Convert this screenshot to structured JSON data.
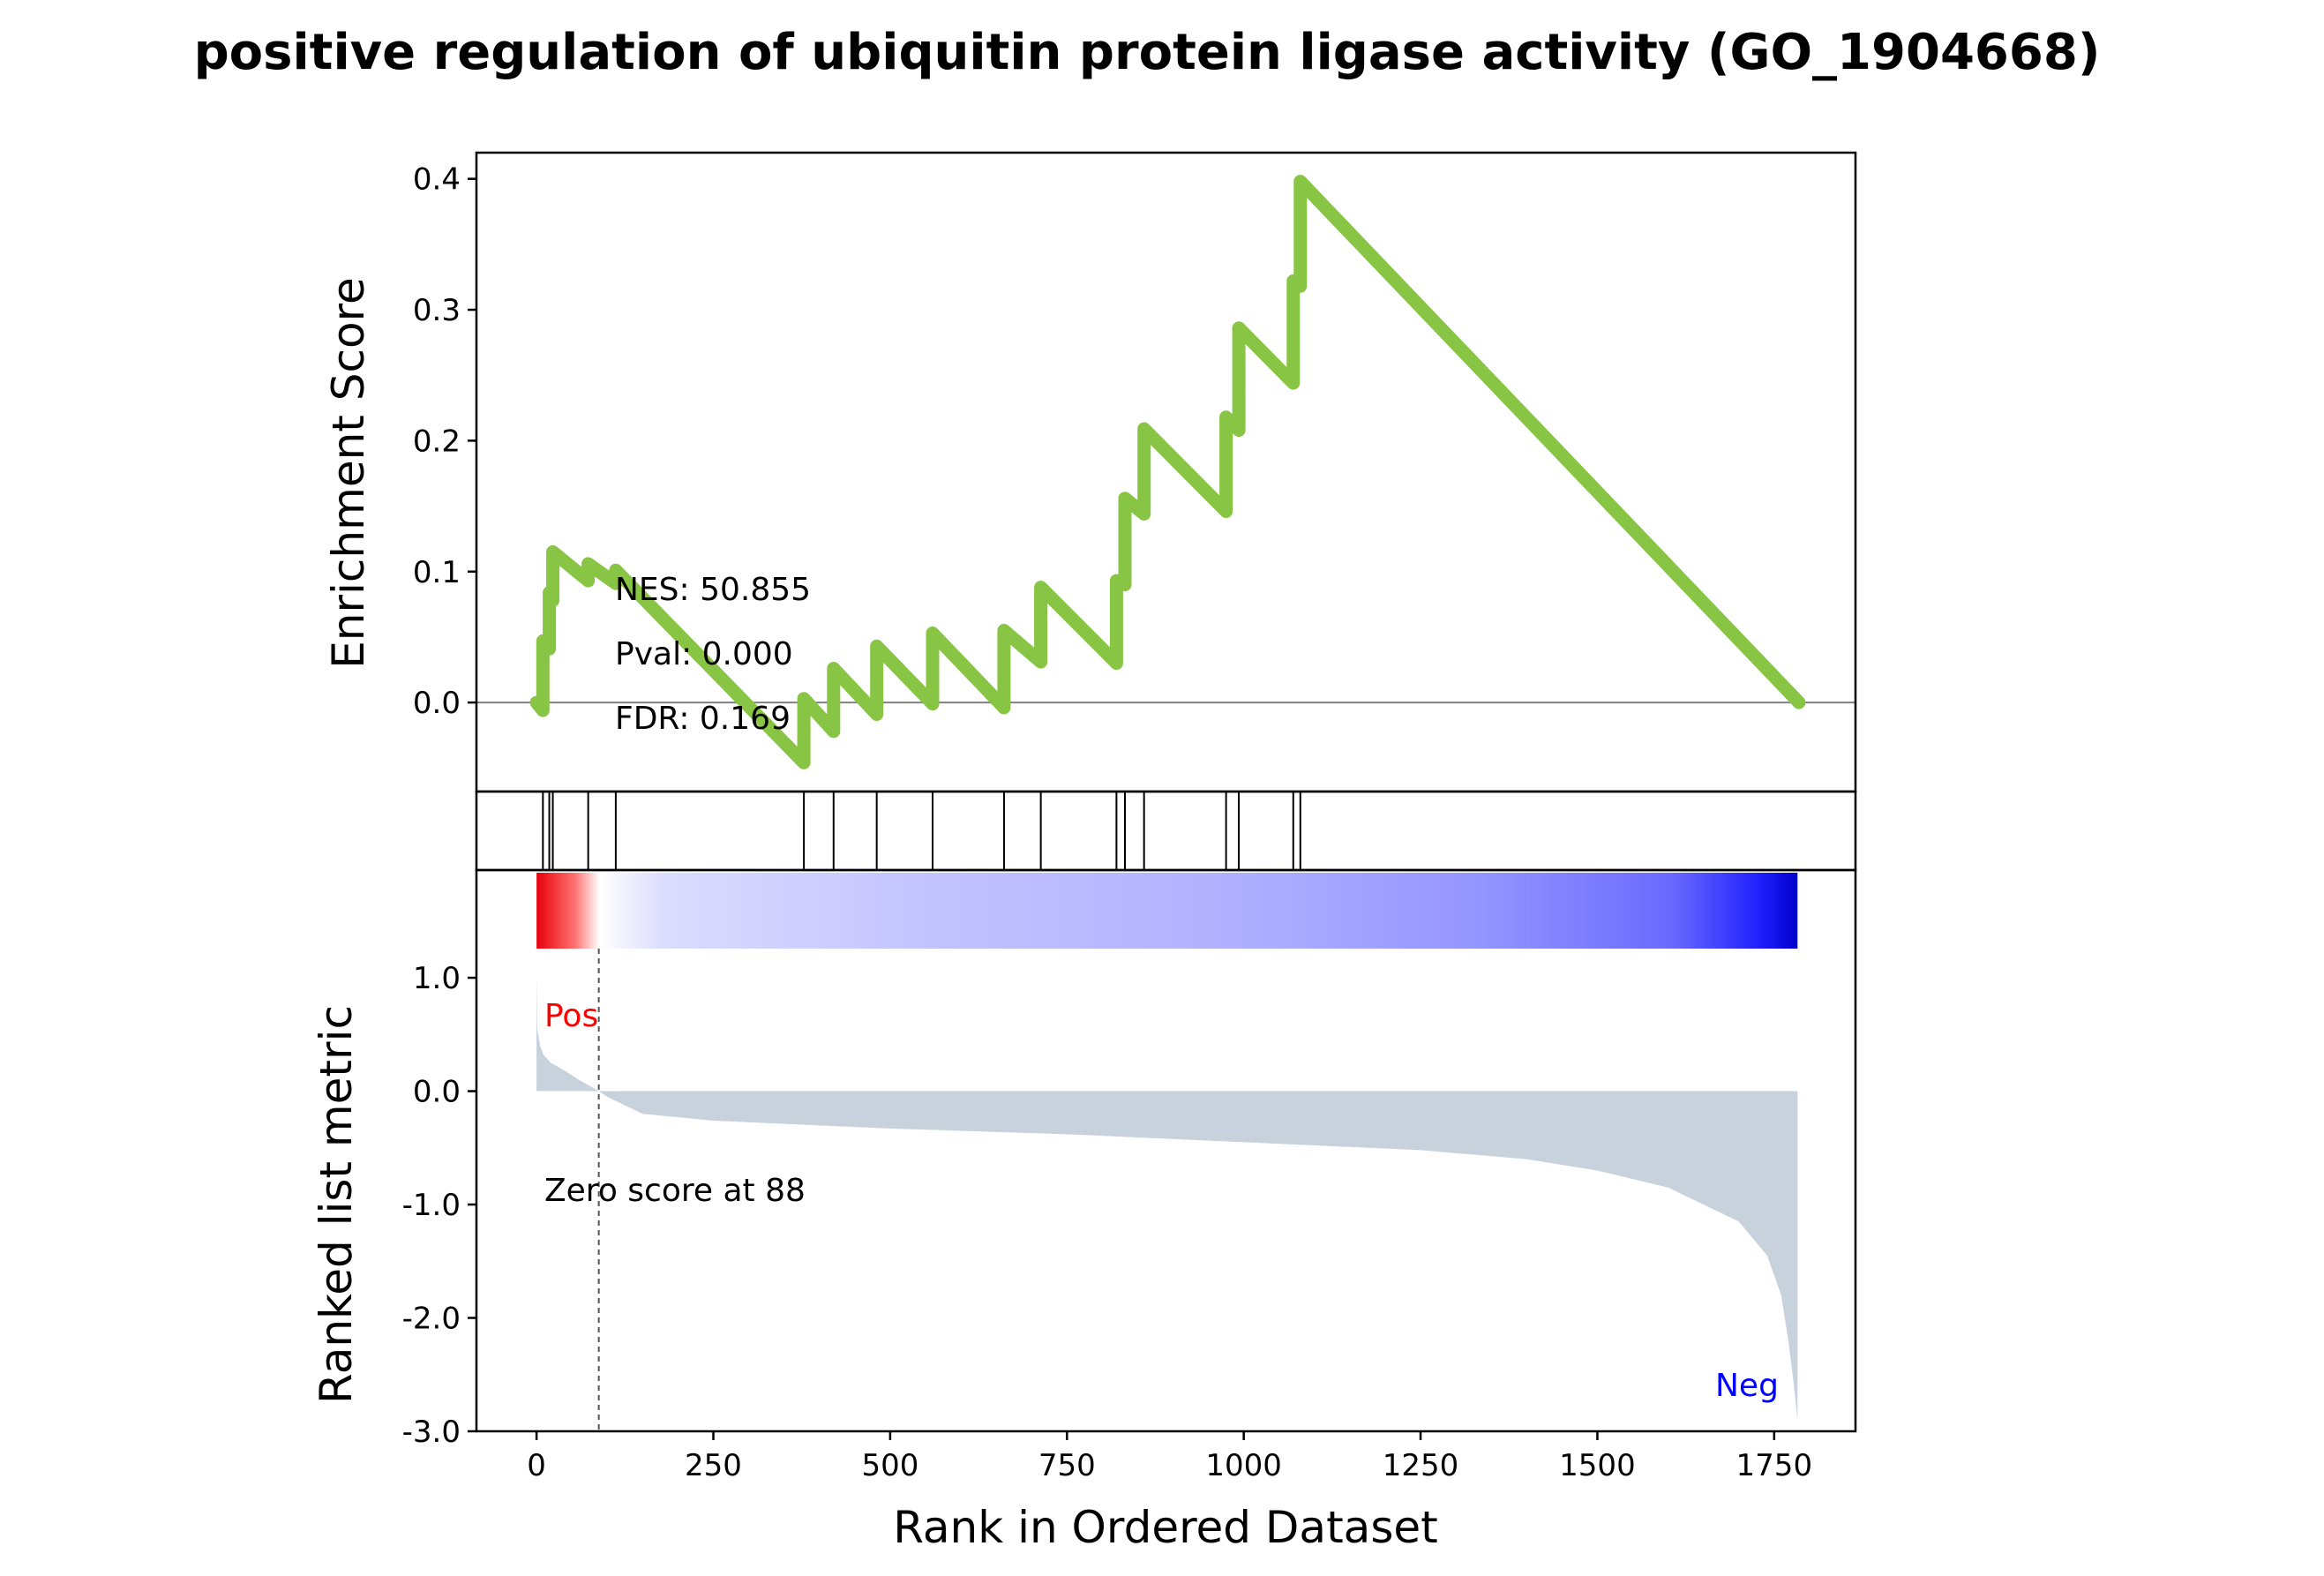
{
  "chart_data": {
    "type": "line",
    "title": "positive regulation of ubiquitin protein ligase activity (GO_1904668)",
    "xlabel": "Rank in Ordered Dataset",
    "xticks": [
      0,
      250,
      500,
      750,
      1000,
      1250,
      1500,
      1750
    ],
    "xlim": [
      -85,
      1865
    ],
    "enrichment": {
      "ylabel": "Enrichment Score",
      "ylim": [
        -0.068,
        0.42
      ],
      "yticks": [
        "0.4",
        "0.3",
        "0.2",
        "0.1",
        "0.0"
      ],
      "ytick_values": [
        0.4,
        0.3,
        0.2,
        0.1,
        0.0
      ],
      "color": "#88c544",
      "x": [
        0,
        9,
        9,
        18,
        18,
        23,
        23,
        23,
        73,
        73,
        112,
        112,
        378,
        378,
        420,
        420,
        481,
        481,
        560,
        560,
        661,
        661,
        713,
        713,
        820,
        820,
        832,
        832,
        859,
        859,
        975,
        975,
        993,
        993,
        1070,
        1070,
        1080,
        1080,
        1785
      ],
      "y": [
        0.0,
        -0.006,
        0.047,
        0.041,
        0.084,
        0.078,
        0.098,
        0.115,
        0.093,
        0.106,
        0.091,
        0.101,
        -0.046,
        0.003,
        -0.022,
        0.026,
        -0.009,
        0.043,
        -0.001,
        0.053,
        -0.004,
        0.055,
        0.031,
        0.088,
        0.03,
        0.093,
        0.09,
        0.156,
        0.144,
        0.209,
        0.146,
        0.218,
        0.208,
        0.286,
        0.244,
        0.322,
        0.318,
        0.398,
        0.0
      ],
      "annotations": {
        "nes": "NES: 50.855",
        "pval": "Pval: 0.000",
        "fdr": "FDR: 0.169"
      }
    },
    "hits": [
      9,
      18,
      23,
      73,
      112,
      378,
      420,
      481,
      560,
      661,
      713,
      820,
      832,
      859,
      975,
      993,
      1070,
      1080
    ],
    "ranked": {
      "ylabel": "Ranked list metric",
      "ylim": [
        -3.0,
        1.95
      ],
      "yticks": [
        "1.0",
        "0.0",
        "-1.0",
        "-2.0",
        "-3.0"
      ],
      "ytick_values": [
        1.0,
        0.0,
        -1.0,
        -2.0,
        -3.0
      ],
      "fill_color": "#c8d2dc",
      "x": [
        0,
        1,
        5,
        10,
        20,
        40,
        60,
        88,
        100,
        150,
        250,
        500,
        750,
        1000,
        1250,
        1400,
        1500,
        1600,
        1650,
        1700,
        1740,
        1760,
        1770,
        1778,
        1783
      ],
      "y": [
        1.05,
        0.55,
        0.4,
        0.32,
        0.25,
        0.18,
        0.1,
        0.0,
        -0.05,
        -0.2,
        -0.26,
        -0.33,
        -0.38,
        -0.45,
        -0.52,
        -0.6,
        -0.7,
        -0.85,
        -1.0,
        -1.15,
        -1.45,
        -1.8,
        -2.2,
        -2.6,
        -2.9
      ],
      "zero_cross": 88,
      "pos_label": "Pos",
      "neg_label": "Neg",
      "pos_color": "#ff0000",
      "neg_color": "#0000ff",
      "zero_label": "Zero score at 88"
    }
  }
}
